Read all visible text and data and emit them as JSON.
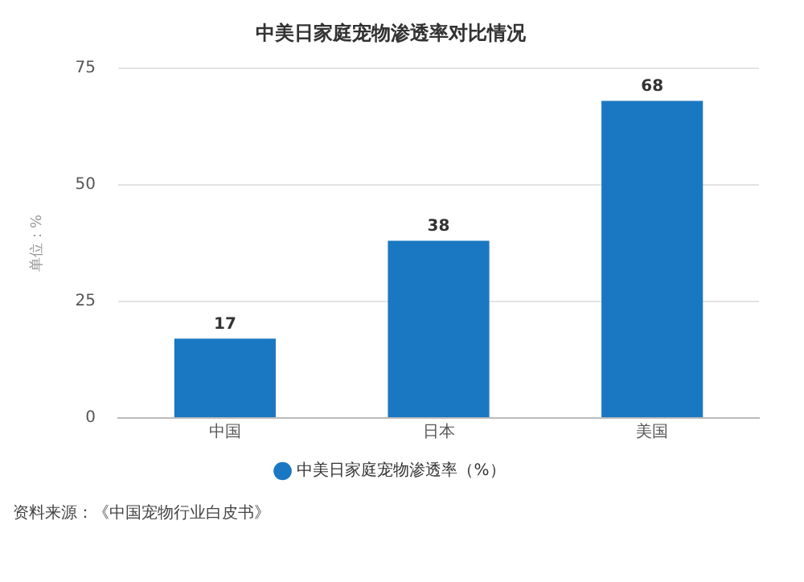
{
  "chart_data": {
    "type": "bar",
    "title": "中美日家庭宠物渗透率对比情况",
    "ylabel": "单位：%",
    "categories": [
      "中国",
      "日本",
      "美国"
    ],
    "series": [
      {
        "name": "中美日家庭宠物渗透率（%）",
        "color": "#1a78c2",
        "values": [
          17,
          38,
          68
        ]
      }
    ],
    "ylim": [
      0,
      75
    ],
    "yticks": [
      0,
      25,
      50,
      75
    ],
    "grid": "y",
    "legend": "bottom",
    "data_labels": true,
    "annotations": [
      "资料来源：《中国宠物行业白皮书》"
    ]
  }
}
